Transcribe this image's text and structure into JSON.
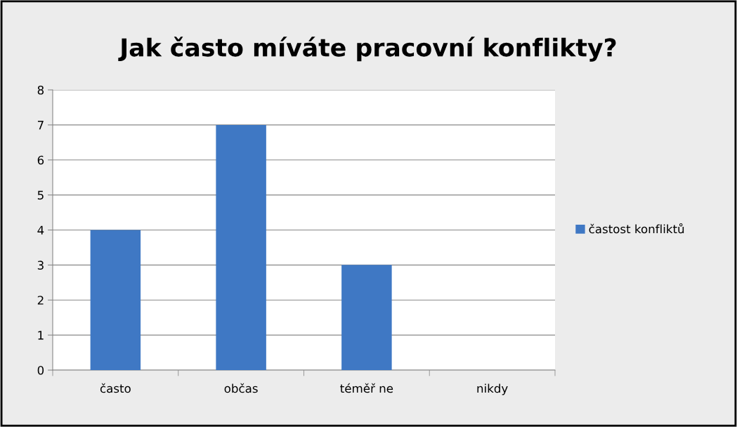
{
  "chart_data": {
    "type": "bar",
    "title": "Jak často míváte pracovní konflikty?",
    "categories": [
      "často",
      "občas",
      "téměř ne",
      "nikdy"
    ],
    "series": [
      {
        "name": "častost konfliktů",
        "color": "#3f78c4",
        "values": [
          4,
          7,
          3,
          0
        ]
      }
    ],
    "ylim": [
      0,
      8
    ],
    "yticks": [
      0,
      1,
      2,
      3,
      4,
      5,
      6,
      7,
      8
    ],
    "grid": "y",
    "legend": "right"
  }
}
